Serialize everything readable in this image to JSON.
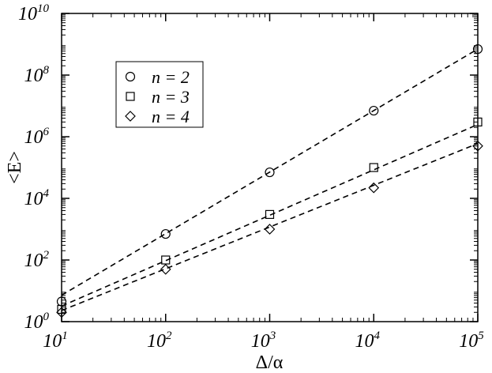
{
  "chart_data": {
    "type": "scatter",
    "xlabel": "Δ/α",
    "ylabel": "<E>",
    "xscale": "log",
    "yscale": "log",
    "xlim": [
      10,
      100000
    ],
    "ylim": [
      1,
      10000000000
    ],
    "x_ticks": [
      {
        "value": 10,
        "base": "10",
        "exp": "1"
      },
      {
        "value": 100,
        "base": "10",
        "exp": "2"
      },
      {
        "value": 1000,
        "base": "10",
        "exp": "3"
      },
      {
        "value": 10000,
        "base": "10",
        "exp": "4"
      },
      {
        "value": 100000,
        "base": "10",
        "exp": "5"
      }
    ],
    "y_ticks": [
      {
        "value": 1,
        "base": "10",
        "exp": "0"
      },
      {
        "value": 100,
        "base": "10",
        "exp": "2"
      },
      {
        "value": 10000,
        "base": "10",
        "exp": "4"
      },
      {
        "value": 1000000,
        "base": "10",
        "exp": "6"
      },
      {
        "value": 100000000,
        "base": "10",
        "exp": "8"
      },
      {
        "value": 10000000000,
        "base": "10",
        "exp": "10"
      }
    ],
    "grid": false,
    "legend_position": "top-left",
    "series": [
      {
        "name": "n = 2",
        "marker": "circle",
        "x": [
          10,
          100,
          1000,
          10000,
          100000
        ],
        "y": [
          4.5,
          700,
          70000,
          7000000,
          700000000
        ],
        "fit": [
          7.2,
          700000000
        ]
      },
      {
        "name": "n = 3",
        "marker": "square",
        "x": [
          10,
          100,
          1000,
          10000,
          100000
        ],
        "y": [
          2.5,
          100,
          3000,
          100000,
          3000000
        ],
        "fit": [
          3.2,
          2500000
        ]
      },
      {
        "name": "n = 4",
        "marker": "diamond",
        "x": [
          10,
          100,
          1000,
          10000,
          100000
        ],
        "y": [
          2,
          50,
          1000,
          22000,
          500000
        ],
        "fit": [
          2.3,
          600000
        ]
      }
    ]
  }
}
